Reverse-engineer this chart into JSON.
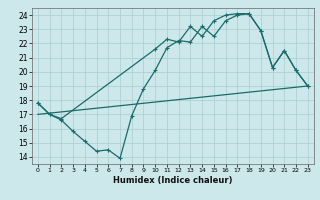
{
  "title": "",
  "xlabel": "Humidex (Indice chaleur)",
  "ylabel": "",
  "bg_color": "#cce8ea",
  "grid_color": "#aacdd0",
  "line_color": "#1a6b6b",
  "xlim": [
    -0.5,
    23.5
  ],
  "ylim": [
    13.5,
    24.5
  ],
  "yticks": [
    14,
    15,
    16,
    17,
    18,
    19,
    20,
    21,
    22,
    23,
    24
  ],
  "xticks": [
    0,
    1,
    2,
    3,
    4,
    5,
    6,
    7,
    8,
    9,
    10,
    11,
    12,
    13,
    14,
    15,
    16,
    17,
    18,
    19,
    20,
    21,
    22,
    23
  ],
  "line1_x": [
    0,
    1,
    2,
    10,
    11,
    12,
    13,
    14,
    15,
    16,
    17,
    18,
    19,
    20,
    21,
    22,
    23
  ],
  "line1_y": [
    17.8,
    17.0,
    16.7,
    21.6,
    22.3,
    22.1,
    23.2,
    22.5,
    23.6,
    24.0,
    24.1,
    24.1,
    22.9,
    20.3,
    21.5,
    20.1,
    19.0
  ],
  "line2_x": [
    0,
    1,
    2,
    3,
    4,
    5,
    6,
    7,
    8,
    9,
    10,
    11,
    12,
    13,
    14,
    15,
    16,
    17,
    18,
    19,
    20,
    21,
    22,
    23
  ],
  "line2_y": [
    17.8,
    17.0,
    16.6,
    15.8,
    15.1,
    14.4,
    14.5,
    13.9,
    16.9,
    18.8,
    20.1,
    21.7,
    22.2,
    22.1,
    23.2,
    22.5,
    23.6,
    24.0,
    24.1,
    22.9,
    20.3,
    21.5,
    20.1,
    19.0
  ],
  "line3_x": [
    0,
    23
  ],
  "line3_y": [
    17.0,
    19.0
  ]
}
